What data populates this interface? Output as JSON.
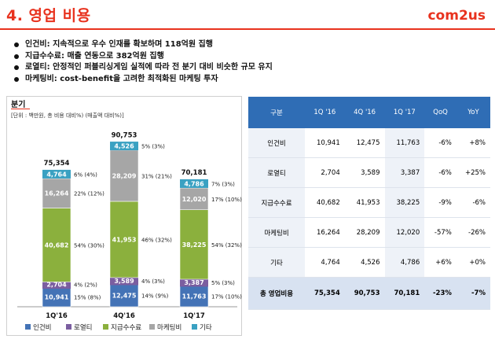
{
  "header": {
    "title": "4. 영업 비용",
    "logo": "com2us"
  },
  "bullets": [
    "인건비: 지속적으로 우수 인재를 확보하며 118억원 집행",
    "지급수수료: 매출 연동으로 382억원 집행",
    "로열티: 안정적인 퍼블리싱게임 실적에 따라 전 분기 대비 비슷한 규모 유지",
    "마케팅비: cost-benefit을 고려한 최적화된 마케팅 투자"
  ],
  "chart": {
    "title": "분기",
    "unit": "[단위 : 백만원, 총 비용 대비%) (매출액 대비%)]"
  },
  "chart_data": {
    "type": "bar",
    "stacked": true,
    "categories": [
      "1Q'16",
      "4Q'16",
      "1Q'17"
    ],
    "totals": [
      "75,354",
      "90,753",
      "70,181"
    ],
    "series": [
      {
        "name": "인건비",
        "color": "#4473b6",
        "values": [
          10941,
          12475,
          11763
        ],
        "labels": [
          "10,941",
          "12,475",
          "11,763"
        ],
        "pct": [
          "15% (8%)",
          "14% (9%)",
          "17% (10%)"
        ]
      },
      {
        "name": "로열티",
        "color": "#7b5ea0",
        "values": [
          2704,
          3589,
          3387
        ],
        "labels": [
          "2,704",
          "3,589",
          "3,387"
        ],
        "pct": [
          "4% (2%)",
          "4% (3%)",
          "5% (3%)"
        ]
      },
      {
        "name": "지급수수료",
        "color": "#8bb03d",
        "values": [
          40682,
          41953,
          38225
        ],
        "labels": [
          "40,682",
          "41,953",
          "38,225"
        ],
        "pct": [
          "54% (30%)",
          "46% (32%)",
          "54% (32%)"
        ]
      },
      {
        "name": "마케팅비",
        "color": "#a6a6a6",
        "values": [
          16264,
          28209,
          12020
        ],
        "labels": [
          "16,264",
          "28,209",
          "12,020"
        ],
        "pct": [
          "22% (12%)",
          "31% (21%)",
          "17% (10%)"
        ]
      },
      {
        "name": "기타",
        "color": "#3aa1c2",
        "values": [
          4764,
          4526,
          4786
        ],
        "labels": [
          "4,764",
          "4,526",
          "4,786"
        ],
        "pct": [
          "6% (4%)",
          "5% (3%)",
          "7% (3%)"
        ]
      }
    ]
  },
  "table": {
    "headers": [
      "구분",
      "1Q '16",
      "4Q '16",
      "1Q '17",
      "QoQ",
      "YoY"
    ],
    "rows": [
      [
        "인건비",
        "10,941",
        "12,475",
        "11,763",
        "-6%",
        "+8%"
      ],
      [
        "로열티",
        "2,704",
        "3,589",
        "3,387",
        "-6%",
        "+25%"
      ],
      [
        "지급수수료",
        "40,682",
        "41,953",
        "38,225",
        "-9%",
        "-6%"
      ],
      [
        "마케팅비",
        "16,264",
        "28,209",
        "12,020",
        "-57%",
        "-26%"
      ],
      [
        "기타",
        "4,764",
        "4,526",
        "4,786",
        "+6%",
        "+0%"
      ]
    ],
    "total": [
      "총 영업비용",
      "75,354",
      "90,753",
      "70,181",
      "-23%",
      "-7%"
    ]
  }
}
